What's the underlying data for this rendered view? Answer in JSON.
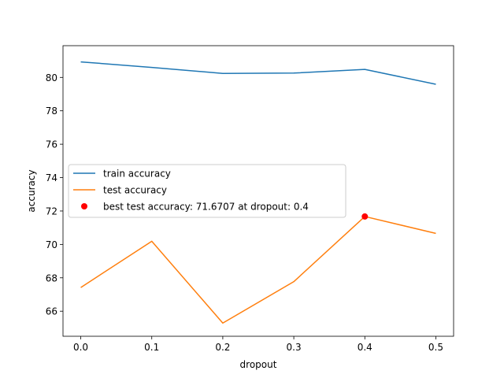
{
  "chart_data": {
    "type": "line",
    "xlabel": "dropout",
    "ylabel": "accuracy",
    "xlim": [
      -0.025,
      0.525
    ],
    "ylim": [
      64.5,
      81.9
    ],
    "x_ticks": [
      0.0,
      0.1,
      0.2,
      0.3,
      0.4,
      0.5
    ],
    "x_tick_labels": [
      "0.0",
      "0.1",
      "0.2",
      "0.3",
      "0.4",
      "0.5"
    ],
    "y_ticks": [
      66,
      68,
      70,
      72,
      74,
      76,
      78,
      80
    ],
    "y_tick_labels": [
      "66",
      "68",
      "70",
      "72",
      "74",
      "76",
      "78",
      "80"
    ],
    "grid": false,
    "legend_position": "center-left",
    "series": [
      {
        "name": "train accuracy",
        "kind": "line",
        "color": "#1f77b4",
        "x": [
          0.0,
          0.1,
          0.2,
          0.3,
          0.4,
          0.5
        ],
        "y": [
          80.93,
          80.6,
          80.24,
          80.26,
          80.48,
          79.59
        ]
      },
      {
        "name": "test accuracy",
        "kind": "line",
        "color": "#ff7f0e",
        "x": [
          0.0,
          0.1,
          0.2,
          0.3,
          0.4,
          0.5
        ],
        "y": [
          67.42,
          70.19,
          65.29,
          67.77,
          71.67,
          70.66
        ]
      },
      {
        "name": "best test accuracy: 71.6707 at dropout: 0.4",
        "kind": "point",
        "color": "#ff0000",
        "x": [
          0.4
        ],
        "y": [
          71.6707
        ]
      }
    ]
  }
}
